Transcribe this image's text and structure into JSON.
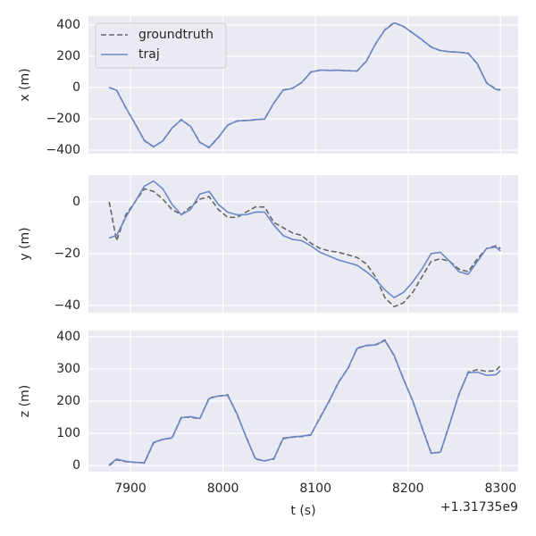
{
  "chart_data": [
    {
      "type": "line",
      "ylabel": "x (m)",
      "legend": "upper left",
      "grid": true,
      "x": [
        7877,
        7885,
        7895,
        7905,
        7915,
        7925,
        7935,
        7945,
        7955,
        7965,
        7975,
        7985,
        7995,
        8005,
        8015,
        8025,
        8035,
        8045,
        8055,
        8065,
        8075,
        8085,
        8095,
        8105,
        8115,
        8125,
        8135,
        8145,
        8155,
        8165,
        8175,
        8185,
        8195,
        8205,
        8215,
        8225,
        8235,
        8245,
        8255,
        8265,
        8275,
        8285,
        8295,
        8300
      ],
      "series": [
        {
          "name": "groundtruth",
          "color": "#666666",
          "linestyle": "dashed",
          "values": [
            0,
            -15,
            -130,
            -230,
            -340,
            -380,
            -340,
            -260,
            -205,
            -250,
            -350,
            -385,
            -320,
            -240,
            -215,
            -210,
            -207,
            -200,
            -100,
            -15,
            -5,
            30,
            100,
            110,
            110,
            110,
            108,
            105,
            170,
            280,
            370,
            415,
            390,
            350,
            305,
            260,
            235,
            230,
            225,
            220,
            150,
            30,
            -10,
            -15
          ]
        },
        {
          "name": "traj",
          "color": "#6a88c8",
          "linestyle": "solid",
          "values": [
            0,
            -18,
            -128,
            -232,
            -338,
            -378,
            -342,
            -258,
            -207,
            -248,
            -352,
            -383,
            -318,
            -242,
            -213,
            -211,
            -205,
            -202,
            -98,
            -17,
            -6,
            32,
            98,
            112,
            109,
            111,
            107,
            106,
            168,
            282,
            368,
            413,
            392,
            348,
            307,
            258,
            237,
            229,
            226,
            218,
            152,
            28,
            -12,
            -17
          ]
        }
      ],
      "xlim": [
        7854.6,
        8319
      ],
      "xticks": [
        7900,
        8000,
        8100,
        8200,
        8300
      ],
      "ylim": [
        -423,
        457
      ],
      "yticks": [
        {
          "value": -400,
          "label": "−400"
        },
        {
          "value": -200,
          "label": "−200"
        },
        0,
        200,
        400
      ]
    },
    {
      "type": "line",
      "ylabel": "y (m)",
      "grid": true,
      "x": [
        7877,
        7885,
        7895,
        7905,
        7915,
        7925,
        7935,
        7945,
        7955,
        7965,
        7975,
        7985,
        7995,
        8005,
        8015,
        8025,
        8035,
        8045,
        8055,
        8065,
        8075,
        8085,
        8095,
        8105,
        8115,
        8125,
        8135,
        8145,
        8155,
        8165,
        8175,
        8185,
        8195,
        8205,
        8215,
        8225,
        8235,
        8245,
        8255,
        8265,
        8275,
        8285,
        8295,
        8300
      ],
      "series": [
        {
          "name": "groundtruth",
          "color": "#666666",
          "linestyle": "dashed",
          "values": [
            0,
            -15,
            -5,
            0,
            5,
            4,
            1,
            -3,
            -5,
            -2,
            1,
            2,
            -3,
            -6,
            -6,
            -4,
            -2,
            -2,
            -8,
            -10,
            -12,
            -13,
            -16,
            -18,
            -19,
            -19.5,
            -20.5,
            -21.5,
            -24,
            -29,
            -37,
            -40.5,
            -39,
            -35,
            -29,
            -23,
            -22,
            -23,
            -26,
            -27,
            -22,
            -18,
            -17,
            -18
          ]
        },
        {
          "name": "traj",
          "color": "#6a88c8",
          "linestyle": "solid",
          "values": [
            -14,
            -13,
            -6,
            0,
            6,
            8,
            5,
            -1,
            -5,
            -3,
            3,
            4,
            -1,
            -4,
            -5,
            -5,
            -4,
            -4,
            -9,
            -13,
            -14.5,
            -15,
            -17,
            -19.5,
            -21,
            -22.5,
            -23.5,
            -24.5,
            -27,
            -30,
            -34,
            -37,
            -35,
            -31,
            -26,
            -20,
            -19.5,
            -23,
            -27,
            -28,
            -23,
            -18,
            -17.5,
            -19
          ]
        }
      ],
      "xlim": [
        7854.6,
        8319
      ],
      "xticks": [
        7900,
        8000,
        8100,
        8200,
        8300
      ],
      "ylim": [
        -42.8,
        10.3
      ],
      "yticks": [
        {
          "value": -40,
          "label": "−40"
        },
        {
          "value": -20,
          "label": "−20"
        },
        0
      ]
    },
    {
      "type": "line",
      "ylabel": "z (m)",
      "xlabel": "t (s)",
      "x_offset_label": "+1.31735e9",
      "grid": true,
      "x": [
        7877,
        7885,
        7895,
        7905,
        7915,
        7925,
        7935,
        7945,
        7955,
        7965,
        7975,
        7985,
        7995,
        8005,
        8015,
        8025,
        8035,
        8045,
        8055,
        8065,
        8075,
        8085,
        8095,
        8105,
        8115,
        8125,
        8135,
        8145,
        8155,
        8165,
        8175,
        8185,
        8195,
        8205,
        8215,
        8225,
        8235,
        8245,
        8255,
        8265,
        8275,
        8285,
        8295,
        8300
      ],
      "series": [
        {
          "name": "groundtruth",
          "color": "#666666",
          "linestyle": "dashed",
          "values": [
            0,
            18,
            12,
            10,
            8,
            70,
            82,
            85,
            150,
            150,
            145,
            210,
            215,
            220,
            160,
            90,
            20,
            15,
            20,
            85,
            88,
            90,
            95,
            150,
            200,
            260,
            300,
            365,
            372,
            375,
            390,
            340,
            270,
            200,
            120,
            40,
            40,
            130,
            220,
            290,
            298,
            292,
            295,
            310
          ]
        },
        {
          "name": "traj",
          "color": "#6a88c8",
          "linestyle": "solid",
          "values": [
            2,
            20,
            13,
            10,
            9,
            72,
            81,
            87,
            148,
            152,
            146,
            208,
            216,
            218,
            162,
            88,
            22,
            14,
            22,
            83,
            89,
            91,
            96,
            148,
            202,
            258,
            302,
            363,
            373,
            374,
            388,
            342,
            268,
            202,
            118,
            38,
            42,
            128,
            222,
            288,
            290,
            280,
            282,
            295
          ]
        }
      ],
      "xlim": [
        7854.6,
        8319
      ],
      "xticks": [
        7900,
        8000,
        8100,
        8200,
        8300
      ],
      "ylim": [
        -19,
        419
      ],
      "yticks": [
        0,
        100,
        200,
        300,
        400
      ]
    }
  ]
}
